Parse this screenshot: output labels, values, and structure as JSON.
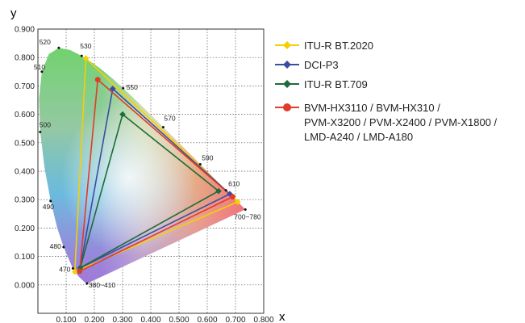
{
  "chart_data": {
    "type": "scatter",
    "title": "",
    "xlabel": "x",
    "ylabel": "y",
    "xlim": [
      0.0,
      0.8
    ],
    "ylim": [
      -0.1,
      0.9
    ],
    "x_ticks": [
      "0.100",
      "0.200",
      "0.300",
      "0.400",
      "0.500",
      "0.600",
      "0.700",
      "0.800"
    ],
    "y_ticks": [
      "0.000",
      "0.100",
      "0.200",
      "0.300",
      "0.400",
      "0.500",
      "0.600",
      "0.700",
      "0.800",
      "0.900"
    ],
    "grid": true,
    "legend_position": "right",
    "spectral_locus_labels": [
      {
        "label": "520",
        "x": 0.074,
        "y": 0.834
      },
      {
        "label": "530",
        "x": 0.155,
        "y": 0.806
      },
      {
        "label": "510",
        "x": 0.014,
        "y": 0.75
      },
      {
        "label": "550",
        "x": 0.302,
        "y": 0.692
      },
      {
        "label": "570",
        "x": 0.444,
        "y": 0.555
      },
      {
        "label": "500",
        "x": 0.008,
        "y": 0.538
      },
      {
        "label": "590",
        "x": 0.575,
        "y": 0.424
      },
      {
        "label": "610",
        "x": 0.666,
        "y": 0.333
      },
      {
        "label": "490",
        "x": 0.045,
        "y": 0.295
      },
      {
        "label": "700~780",
        "x": 0.735,
        "y": 0.265
      },
      {
        "label": "480",
        "x": 0.091,
        "y": 0.133
      },
      {
        "label": "470",
        "x": 0.124,
        "y": 0.058
      },
      {
        "label": "380~410",
        "x": 0.174,
        "y": 0.005
      }
    ],
    "series": [
      {
        "name": "ITU-R BT.2020",
        "color": "#f5d000",
        "marker": "diamond",
        "points": [
          [
            0.708,
            0.292
          ],
          [
            0.17,
            0.797
          ],
          [
            0.131,
            0.046
          ]
        ]
      },
      {
        "name": "DCI-P3",
        "color": "#3a4ea0",
        "marker": "diamond",
        "points": [
          [
            0.68,
            0.32
          ],
          [
            0.265,
            0.69
          ],
          [
            0.15,
            0.06
          ]
        ]
      },
      {
        "name": "ITU-R BT.709",
        "color": "#1f6b3b",
        "marker": "diamond",
        "points": [
          [
            0.64,
            0.33
          ],
          [
            0.3,
            0.6
          ],
          [
            0.15,
            0.06
          ]
        ]
      },
      {
        "name": "BVM-HX3110 / BVM-HX310 / PVM-X3200 / PVM-X2400 / PVM-X1800 / LMD-A240 / LMD-A180",
        "color": "#e03b2b",
        "marker": "circle",
        "points": [
          [
            0.69,
            0.31
          ],
          [
            0.212,
            0.722
          ],
          [
            0.148,
            0.048
          ]
        ]
      }
    ]
  },
  "legend_lines": [
    [
      "ITU-R BT.2020"
    ],
    [
      "DCI-P3"
    ],
    [
      "ITU-R BT.709"
    ],
    [
      "BVM-HX3110 / BVM-HX310 /",
      "PVM-X3200 / PVM-X2400 / PVM-X1800 /",
      "LMD-A240 / LMD-A180"
    ]
  ]
}
